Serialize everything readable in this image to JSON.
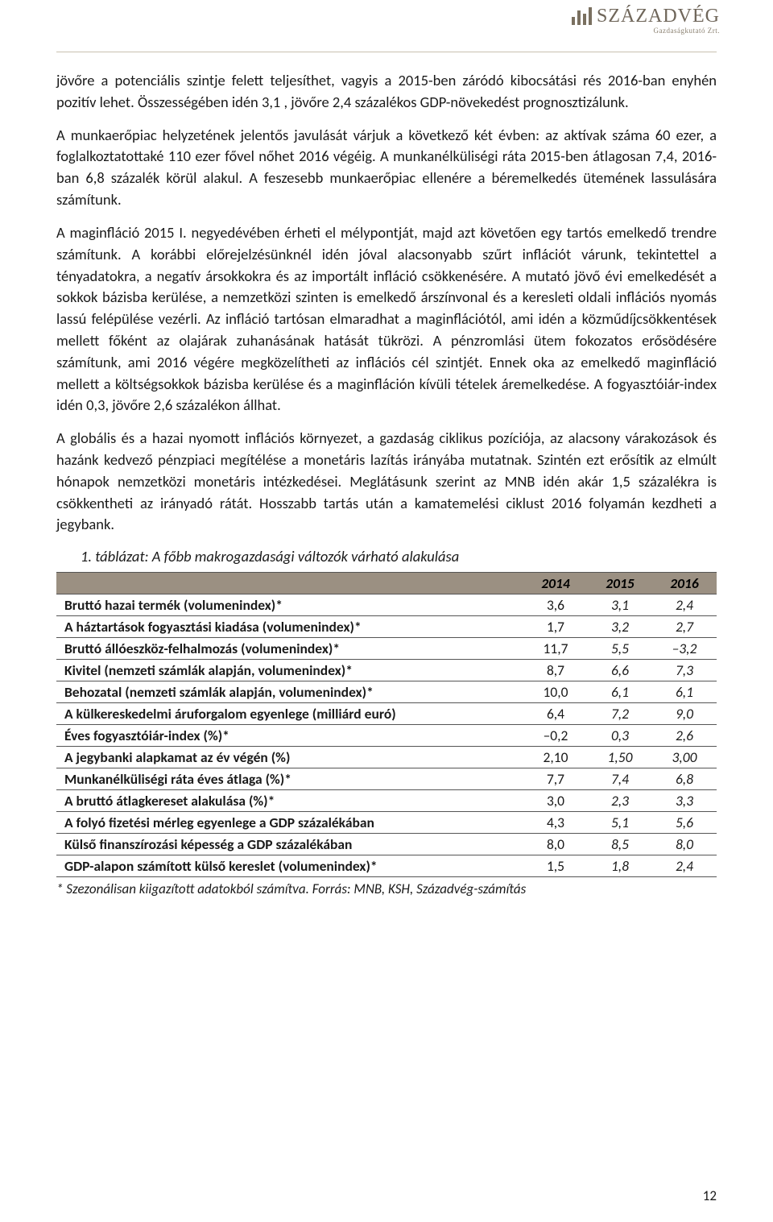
{
  "logo": {
    "text_main": "SZÁZADVÉG",
    "text_sub": "Gazdaságkutató Zrt."
  },
  "paragraphs": {
    "p1": "jövőre a potenciális szintje felett teljesíthet, vagyis a 2015-ben záródó kibocsátási rés 2016-ban enyhén pozitív lehet. Összességében idén 3,1 , jövőre 2,4 százalékos GDP-növekedést prognosztizálunk.",
    "p2": "A munkaerőpiac helyzetének jelentős javulását várjuk a következő két évben: az aktívak száma 60 ezer, a foglalkoztatottaké 110 ezer fővel nőhet 2016 végéig. A munkanélküliségi ráta 2015-ben átlagosan 7,4, 2016-ban 6,8 százalék körül alakul. A feszesebb munkaerőpiac ellenére a béremelkedés ütemének lassulására számítunk.",
    "p3": "A maginfláció 2015 I. negyedévében érheti el mélypontját, majd azt követően egy tartós emelkedő trendre számítunk. A korábbi előrejelzésünknél idén jóval alacsonyabb szűrt inflációt várunk, tekintettel a tényadatokra, a negatív ársokkokra és az importált infláció csökkenésére. A mutató jövő évi emelkedését a sokkok bázisba kerülése, a nemzetközi szinten is emelkedő árszínvonal és a keresleti oldali inflációs nyomás lassú felépülése vezérli. Az infláció tartósan elmaradhat a maginflációtól, ami idén a közműdíjcsökkentések mellett főként az olajárak zuhanásának hatását tükrözi. A pénzromlási ütem fokozatos erősödésére számítunk, ami 2016 végére megközelítheti az inflációs cél szintjét. Ennek oka az emelkedő maginfláció mellett a költségsokkok bázisba kerülése és a maginfláción kívüli tételek áremelkedése. A fogyasztóiár-index idén 0,3, jövőre 2,6 százalékon állhat.",
    "p4": "A globális és a hazai nyomott inflációs környezet, a gazdaság ciklikus pozíciója, az alacsony várakozások és hazánk kedvező pénzpiaci megítélése a monetáris lazítás irányába mutatnak. Szintén ezt erősítik az elmúlt hónapok nemzetközi monetáris intézkedései. Meglátásunk szerint az MNB idén akár 1,5 százalékra is csökkentheti az irányadó rátát. Hosszabb tartás után a kamatemelési ciklust 2016 folyamán kezdheti a jegybank."
  },
  "table": {
    "caption": "1.   táblázat: A főbb makrogazdasági változók várható alakulása",
    "header_years": [
      "2014",
      "2015",
      "2016"
    ],
    "rows": [
      {
        "label": "Bruttó hazai termék (volumenindex)*",
        "v": [
          "3,6",
          "3,1",
          "2,4"
        ]
      },
      {
        "label": "A háztartások fogyasztási kiadása (volumenindex)*",
        "v": [
          "1,7",
          "3,2",
          "2,7"
        ]
      },
      {
        "label": "Bruttó állóeszköz-felhalmozás (volumenindex)*",
        "v": [
          "11,7",
          "5,5",
          "–3,2"
        ]
      },
      {
        "label": "Kivitel (nemzeti számlák alapján, volumenindex)*",
        "v": [
          "8,7",
          "6,6",
          "7,3"
        ]
      },
      {
        "label": "Behozatal (nemzeti számlák alapján, volumenindex)*",
        "v": [
          "10,0",
          "6,1",
          "6,1"
        ]
      },
      {
        "label": "A külkereskedelmi áruforgalom egyenlege (milliárd euró)",
        "v": [
          "6,4",
          "7,2",
          "9,0"
        ]
      },
      {
        "label": "Éves fogyasztóiár-index (%)*",
        "v": [
          "–0,2",
          "0,3",
          "2,6"
        ]
      },
      {
        "label": "A jegybanki alapkamat az év végén (%)",
        "v": [
          "2,10",
          "1,50",
          "3,00"
        ]
      },
      {
        "label": "Munkanélküliségi ráta éves átlaga (%)*",
        "v": [
          "7,7",
          "7,4",
          "6,8"
        ]
      },
      {
        "label": "A bruttó átlagkereset alakulása (%)*",
        "v": [
          "3,0",
          "2,3",
          "3,3"
        ]
      },
      {
        "label": "A folyó fizetési mérleg egyenlege a GDP százalékában",
        "v": [
          "4,3",
          "5,1",
          "5,6"
        ]
      },
      {
        "label": "Külső finanszírozási képesség a GDP százalékában",
        "v": [
          "8,0",
          "8,5",
          "8,0"
        ]
      },
      {
        "label": "GDP-alapon számított külső kereslet (volumenindex)*",
        "v": [
          "1,5",
          "1,8",
          "2,4"
        ]
      }
    ],
    "note": "* Szezonálisan kiigazított adatokból számítva. Forrás: MNB, KSH, Századvég-számítás"
  },
  "page_number": "12"
}
